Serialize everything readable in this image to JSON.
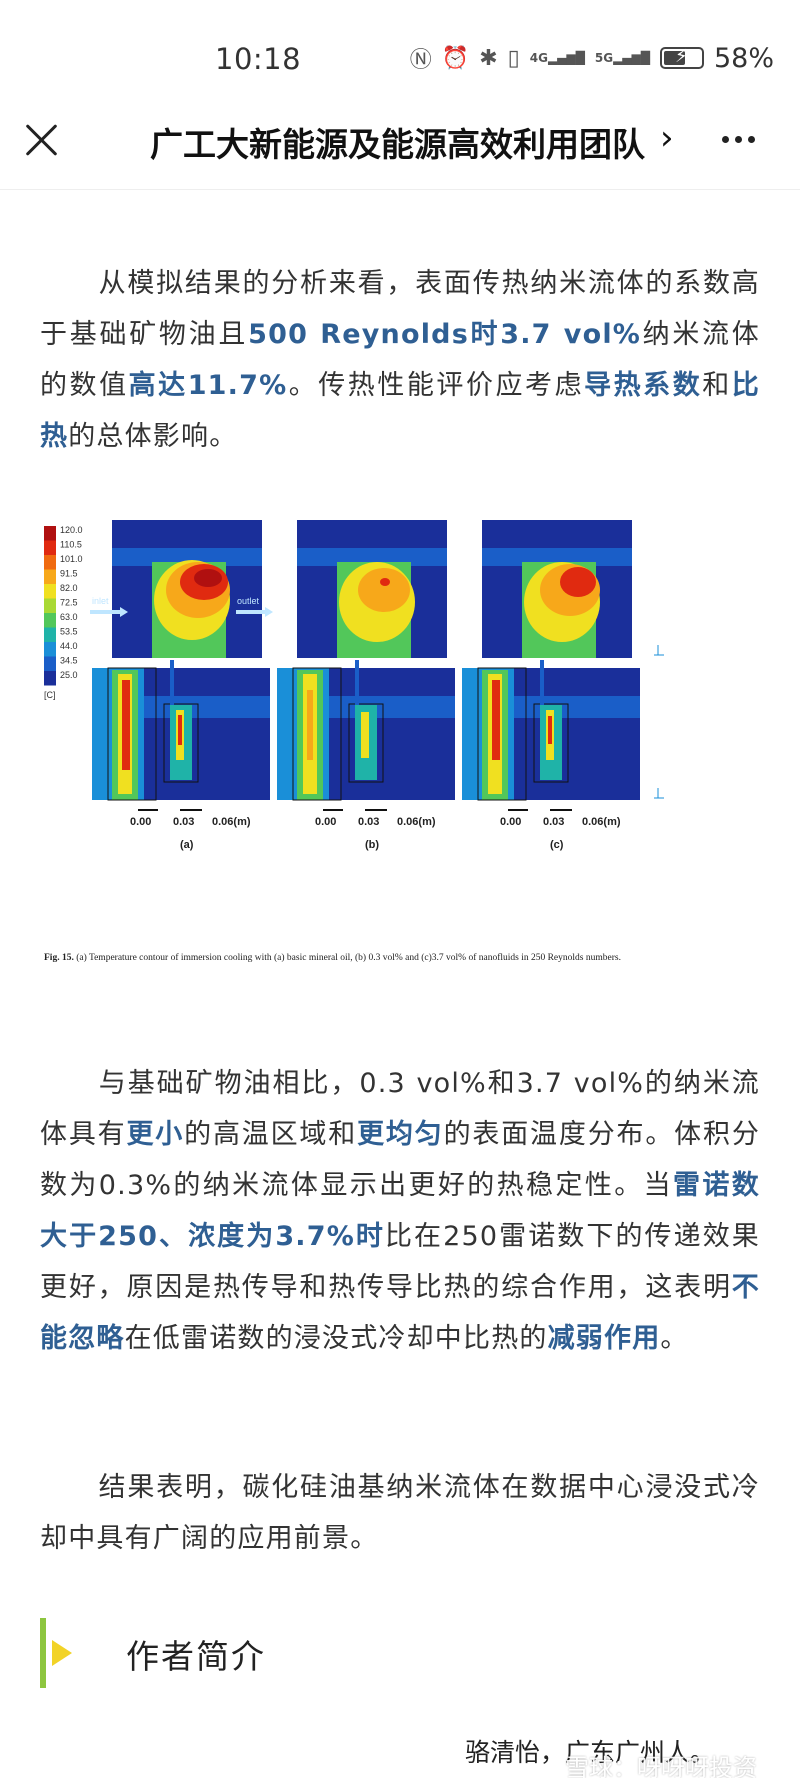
{
  "status_bar": {
    "time": "10:18",
    "battery_percent": "58%",
    "battery_level": 0.58,
    "icons": [
      "nfc-icon",
      "alarm-icon",
      "bluetooth-icon",
      "vibrate-icon",
      "signal-4g-icon",
      "signal-5g-icon",
      "battery-charging-icon"
    ],
    "signal_4g": "4G",
    "signal_5g": "5G"
  },
  "nav": {
    "title": "广工大新能源及能源高效利用团队",
    "chevron": "›",
    "close_icon": "close-icon",
    "more_icon": "more-icon"
  },
  "article": {
    "p1": [
      {
        "t": "从模拟结果的分析来看，表面传热纳米流体的系数高于基础矿物油且",
        "hl": false
      },
      {
        "t": "500 Reynolds时3.7 vol%",
        "hl": true
      },
      {
        "t": "纳米流体的数值",
        "hl": false
      },
      {
        "t": "高达11.7%",
        "hl": true
      },
      {
        "t": "。传热性能评价应考虑",
        "hl": false
      },
      {
        "t": "导热系数",
        "hl": true
      },
      {
        "t": "和",
        "hl": false
      },
      {
        "t": "比热",
        "hl": true
      },
      {
        "t": "的总体影响。",
        "hl": false
      }
    ],
    "p2": [
      {
        "t": "与基础矿物油相比，0.3 vol%和3.7 vol%的纳米流体具有",
        "hl": false
      },
      {
        "t": "更小",
        "hl": true
      },
      {
        "t": "的高温区域和",
        "hl": false
      },
      {
        "t": "更均匀",
        "hl": true
      },
      {
        "t": "的表面温度分布。体积分数为0.3%的纳米流体显示出更好的热稳定性。当",
        "hl": false
      },
      {
        "t": "雷诺数大于250、浓度为3.7%时",
        "hl": true
      },
      {
        "t": "比在250雷诺数下的传递效果更好，原因是热传导和热传导比热的综合作用，这表明",
        "hl": false
      },
      {
        "t": "不能忽略",
        "hl": true
      },
      {
        "t": "在低雷诺数的浸没式冷却中比热的",
        "hl": false
      },
      {
        "t": "减弱作用",
        "hl": true
      },
      {
        "t": "。",
        "hl": false
      }
    ],
    "p3": [
      {
        "t": "结果表明，碳化硅油基纳米流体在数据中心浸没式冷却中具有广阔的应用前景。",
        "hl": false
      }
    ]
  },
  "figure": {
    "legend_values": [
      "120.0",
      "110.5",
      "101.0",
      "91.5",
      "82.0",
      "72.5",
      "63.0",
      "53.5",
      "44.0",
      "34.5",
      "25.0"
    ],
    "legend_colors": [
      "#b01010",
      "#e02a10",
      "#f06a10",
      "#f7a81a",
      "#f0e020",
      "#a9d934",
      "#52c75a",
      "#1fb3a8",
      "#1a8fd8",
      "#1a5ec8",
      "#1a2f9a"
    ],
    "legend_unit": "[C]",
    "inlet_label": "inlet",
    "outlet_label": "outlet",
    "scale_ticks": [
      "0.00",
      "0.03",
      "0.06(m)"
    ],
    "panel_labels": [
      "(a)",
      "(b)",
      "(c)"
    ],
    "caption_label": "Fig. 15.",
    "caption_text": "(a) Temperature contour of immersion cooling with (a) basic mineral oil, (b) 0.3 vol% and (c)3.7 vol% of nanofluids in 250 Reynolds numbers."
  },
  "author": {
    "heading": "作者简介",
    "line": "骆清怡，广东广州人。"
  },
  "watermark": "雪球：呀呀呀投资"
}
